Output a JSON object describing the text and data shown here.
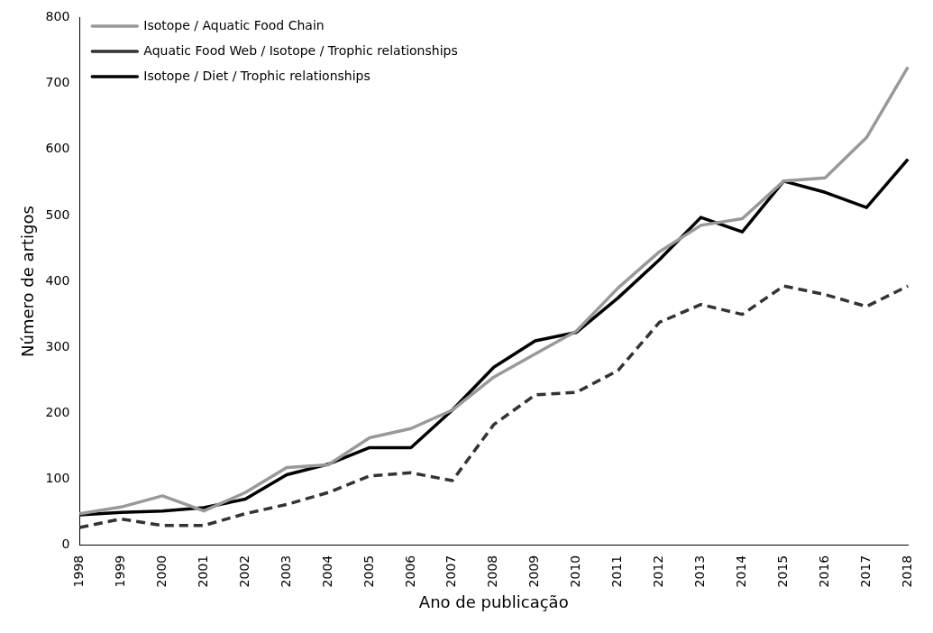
{
  "chart_data": {
    "type": "line",
    "xlabel": "Ano de publicação",
    "ylabel": "Número de artigos",
    "categories": [
      "1998",
      "1999",
      "2000",
      "2001",
      "2002",
      "2003",
      "2004",
      "2005",
      "2006",
      "2007",
      "2008",
      "2009",
      "2010",
      "2011",
      "2012",
      "2013",
      "2014",
      "2015",
      "2016",
      "2017",
      "2018"
    ],
    "series": [
      {
        "name": "Isotope / Aquatic Food Chain",
        "color": "#999999",
        "line_style": "solid",
        "values": [
          48,
          58,
          75,
          52,
          80,
          118,
          122,
          163,
          177,
          205,
          255,
          290,
          325,
          390,
          445,
          485,
          495,
          552,
          557,
          618,
          725
        ]
      },
      {
        "name": "Aquatic Food Web / Isotope / Trophic relationships",
        "color": "#333333",
        "line_style": "dashed",
        "values": [
          27,
          40,
          30,
          30,
          48,
          62,
          80,
          105,
          110,
          98,
          183,
          228,
          232,
          265,
          338,
          365,
          350,
          393,
          380,
          362,
          393
        ]
      },
      {
        "name": "Isotope / Diet / Trophic relationships",
        "color": "#000000",
        "line_style": "solid",
        "values": [
          46,
          50,
          52,
          57,
          70,
          107,
          123,
          148,
          148,
          205,
          270,
          310,
          323,
          375,
          433,
          497,
          475,
          552,
          535,
          512,
          585
        ]
      }
    ],
    "ylim": [
      0,
      800
    ],
    "yticks": [
      0,
      100,
      200,
      300,
      400,
      500,
      600,
      700,
      800
    ],
    "grid": false,
    "legend": "top left",
    "marker": "none"
  }
}
